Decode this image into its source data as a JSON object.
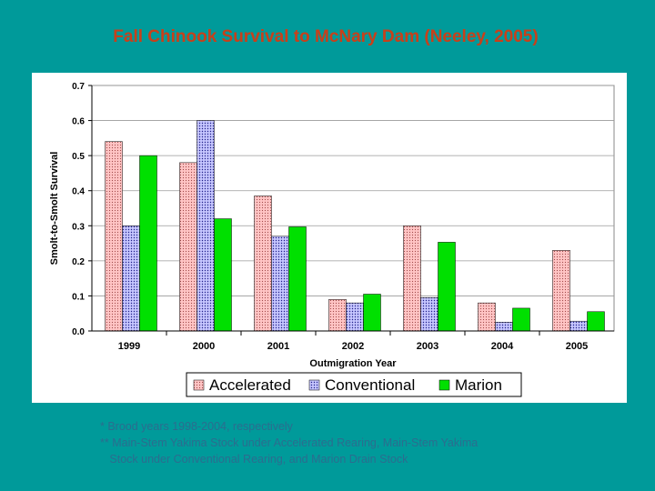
{
  "title": "Fall Chinook Survival to McNary Dam (Neeley, 2005)",
  "footnotes": [
    "* Brood years 1998-2004, respectively",
    "** Main-Stem Yakima Stock under Accelerated Rearing, Main-Stem Yakima",
    "   Stock under Conventional Rearing, and Marion Drain Stock"
  ],
  "colors": {
    "background": "#009a9a",
    "title": "#c8401a",
    "accelerated": "#ffc4c4",
    "accelerated_hatch": "#a04848",
    "conventional": "#c6c6ff",
    "conventional_hatch": "#20208a",
    "marion": "#00e000"
  },
  "chart_data": {
    "type": "bar",
    "title": "",
    "xlabel": "Outmigration Year",
    "ylabel": "Smolt-to-Smolt Survival",
    "ylim": [
      0,
      0.7
    ],
    "yticks": [
      "0.0",
      "0.1",
      "0.2",
      "0.3",
      "0.4",
      "0.5",
      "0.6",
      "0.7"
    ],
    "categories": [
      "1999",
      "2000",
      "2001",
      "2002",
      "2003",
      "2004",
      "2005"
    ],
    "grid": true,
    "legend_position": "bottom",
    "series": [
      {
        "name": "Accelerated",
        "values": [
          0.54,
          0.48,
          0.385,
          0.09,
          0.3,
          0.08,
          0.23
        ]
      },
      {
        "name": "Conventional",
        "values": [
          0.3,
          0.6,
          0.27,
          0.08,
          0.095,
          0.025,
          0.028
        ]
      },
      {
        "name": "Marion",
        "values": [
          0.5,
          0.32,
          0.297,
          0.105,
          0.253,
          0.065,
          0.055
        ]
      }
    ]
  }
}
